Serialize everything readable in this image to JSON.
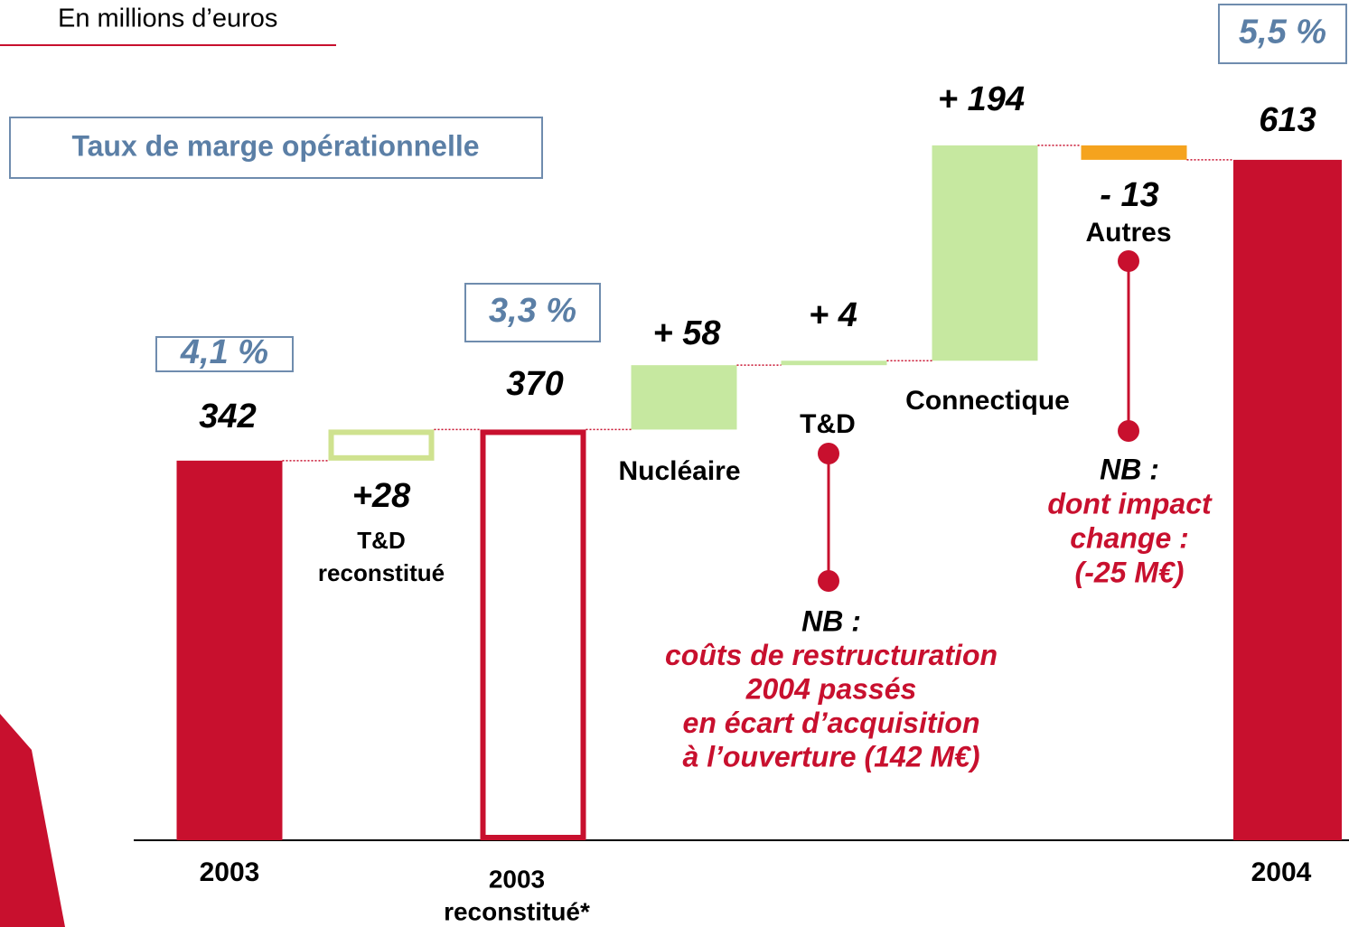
{
  "chart_data": {
    "type": "waterfall",
    "subtitle": "En millions d’euros",
    "legend_label": "Taux de marge opérationnelle",
    "categories": [
      [
        "2003"
      ],
      [
        "T&D",
        "reconstitué"
      ],
      [
        "2003",
        "reconstitué*"
      ],
      [
        "Nucléaire"
      ],
      [
        "T&D"
      ],
      [
        "Connectique"
      ],
      [
        "Autres"
      ],
      [
        "2004"
      ]
    ],
    "values": [
      342,
      28,
      370,
      58,
      4,
      194,
      -13,
      613
    ],
    "value_labels": [
      "342",
      "+28",
      "370",
      "+ 58",
      "+ 4",
      "+ 194",
      "- 13",
      "613"
    ],
    "kinds": [
      "total",
      "delta",
      "total",
      "delta",
      "delta",
      "delta",
      "delta",
      "total"
    ],
    "styles": [
      "solid",
      "outline",
      "outline",
      "solid",
      "solid",
      "solid",
      "solid",
      "solid"
    ],
    "colors": [
      "#c8102e",
      "#cfe28f",
      "#c8102e",
      "#c6e8a0",
      "#c6e8a0",
      "#c6e8a0",
      "#f5a31e",
      "#c8102e"
    ],
    "margins": [
      {
        "value": 4.1,
        "label": "4,1 %"
      },
      null,
      {
        "value": 3.3,
        "label": "3,3 %"
      },
      null,
      null,
      null,
      null,
      {
        "value": 5.5,
        "label": "5,5 %"
      }
    ],
    "ylim": [
      0,
      700
    ],
    "notes": [
      {
        "title": "NB :",
        "lines": [
          "coûts de restructuration",
          "2004 passés",
          "en écart d’acquisition",
          "à l’ouverture  (142 M€)"
        ]
      },
      {
        "title": "NB :",
        "lines": [
          "dont impact",
          "change :",
          "(-25 M€)"
        ]
      }
    ]
  }
}
